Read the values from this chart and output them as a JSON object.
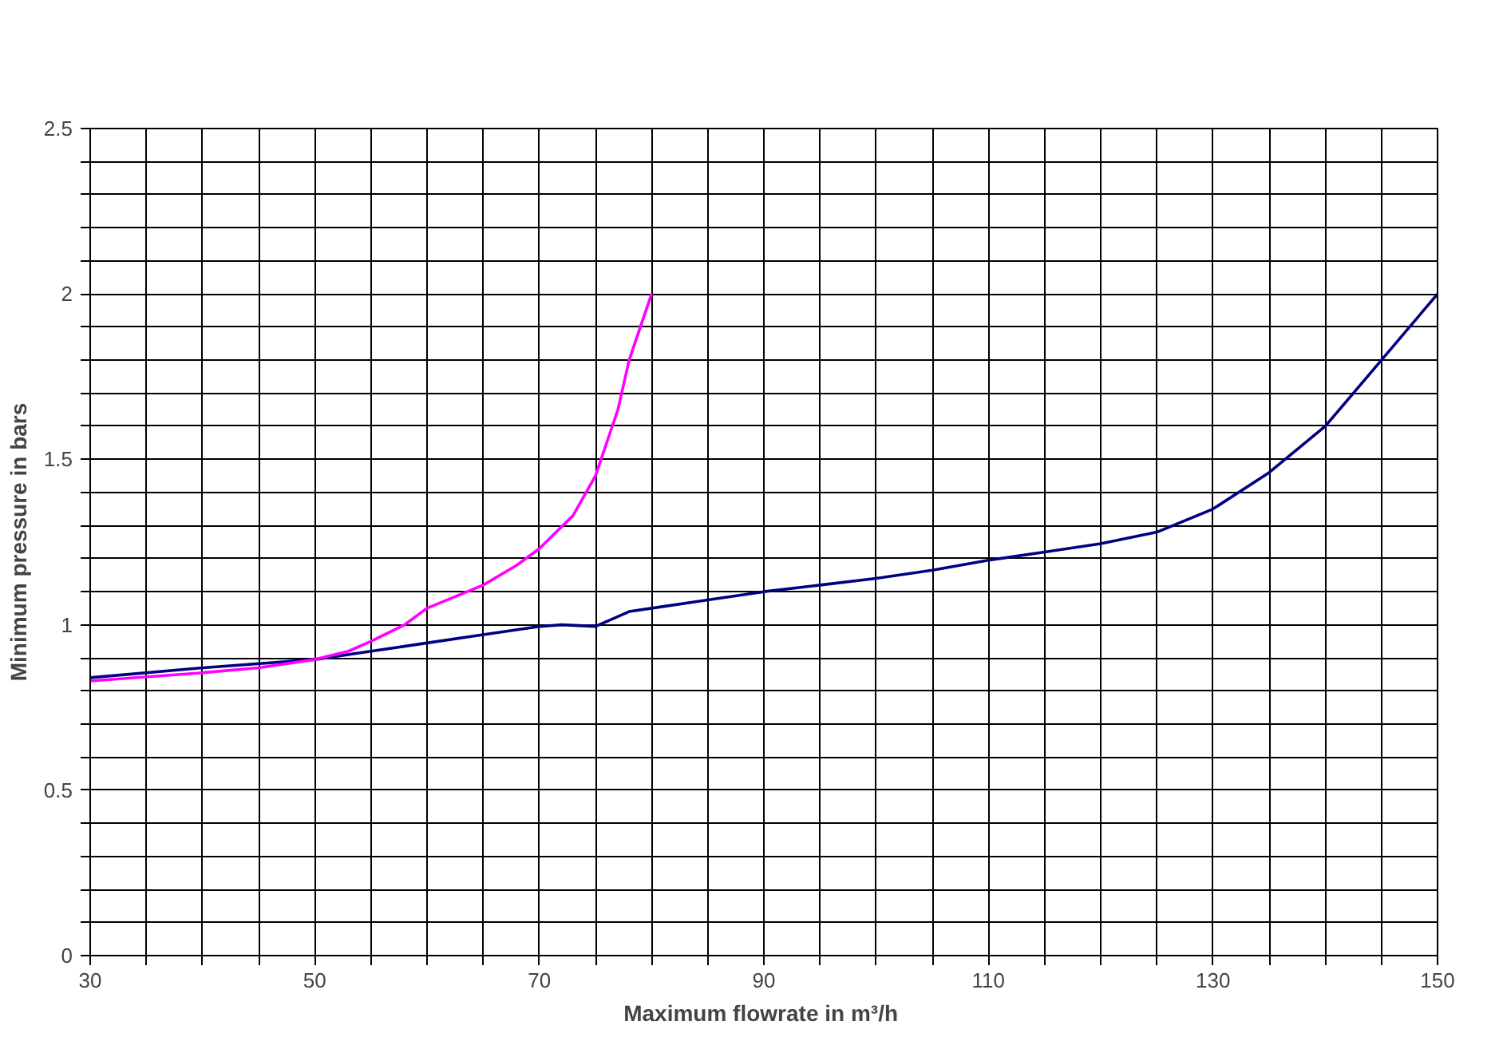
{
  "chart_data": {
    "type": "line",
    "xlabel": "Maximum  flowrate in m³/h",
    "ylabel": "Minimum pressure in bars",
    "xlim": [
      30,
      150
    ],
    "ylim": [
      0,
      2.5
    ],
    "xticks": [
      30,
      {
        "value": 35,
        "label": null
      },
      {
        "value": 40,
        "label": null
      },
      {
        "value": 45,
        "label": null
      },
      50,
      {
        "value": 55,
        "label": null
      },
      {
        "value": 60,
        "label": null
      },
      {
        "value": 65,
        "label": null
      },
      70,
      {
        "value": 75,
        "label": null
      },
      {
        "value": 80,
        "label": null
      },
      {
        "value": 85,
        "label": null
      },
      90,
      {
        "value": 95,
        "label": null
      },
      {
        "value": 100,
        "label": null
      },
      {
        "value": 105,
        "label": null
      },
      110,
      {
        "value": 115,
        "label": null
      },
      {
        "value": 120,
        "label": null
      },
      {
        "value": 125,
        "label": null
      },
      130,
      {
        "value": 135,
        "label": null
      },
      {
        "value": 140,
        "label": null
      },
      {
        "value": 145,
        "label": null
      },
      150
    ],
    "yticks": [
      0,
      {
        "value": 0.1,
        "label": null
      },
      {
        "value": 0.2,
        "label": null
      },
      {
        "value": 0.3,
        "label": null
      },
      {
        "value": 0.4,
        "label": null
      },
      0.5,
      {
        "value": 0.6,
        "label": null
      },
      {
        "value": 0.7,
        "label": null
      },
      {
        "value": 0.8,
        "label": null
      },
      {
        "value": 0.9,
        "label": null
      },
      1,
      {
        "value": 1.1,
        "label": null
      },
      {
        "value": 1.2,
        "label": null
      },
      {
        "value": 1.3,
        "label": null
      },
      {
        "value": 1.4,
        "label": null
      },
      1.5,
      {
        "value": 1.6,
        "label": null
      },
      {
        "value": 1.7,
        "label": null
      },
      {
        "value": 1.8,
        "label": null
      },
      {
        "value": 1.9,
        "label": null
      },
      2,
      {
        "value": 2.1,
        "label": null
      },
      {
        "value": 2.2,
        "label": null
      },
      {
        "value": 2.3,
        "label": null
      },
      {
        "value": 2.4,
        "label": null
      },
      2.5
    ],
    "grid": true,
    "marker": "none",
    "line_style": "solid",
    "series": [
      {
        "color": "#000080",
        "x": [
          30,
          40,
          50,
          55,
          60,
          65,
          70,
          72,
          75,
          78,
          80,
          85,
          90,
          95,
          100,
          105,
          110,
          115,
          120,
          125,
          130,
          135,
          140,
          145,
          150
        ],
        "values": [
          0.84,
          0.87,
          0.895,
          0.92,
          0.945,
          0.97,
          0.995,
          1.0,
          0.995,
          1.04,
          1.05,
          1.075,
          1.1,
          1.12,
          1.14,
          1.165,
          1.195,
          1.22,
          1.245,
          1.28,
          1.35,
          1.46,
          1.6,
          1.8,
          2.0
        ]
      },
      {
        "color": "#ff00ff",
        "x": [
          30,
          40,
          45,
          50,
          53,
          55,
          58,
          60,
          65,
          68,
          70,
          73,
          75,
          77,
          78,
          79,
          80
        ],
        "values": [
          0.83,
          0.855,
          0.87,
          0.895,
          0.92,
          0.95,
          1.0,
          1.05,
          1.12,
          1.18,
          1.23,
          1.33,
          1.45,
          1.65,
          1.8,
          1.9,
          2.0
        ]
      }
    ]
  }
}
